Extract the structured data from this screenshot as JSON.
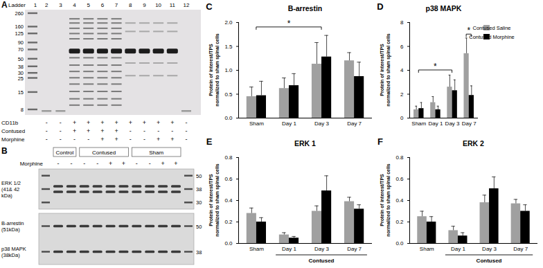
{
  "panel_a": {
    "letter": "A",
    "ladder_label": "Ladder",
    "lanes": [
      "1",
      "2",
      "3",
      "4",
      "5",
      "6",
      "7",
      "8",
      "9",
      "10",
      "11",
      "12"
    ],
    "markers": [
      260,
      160,
      125,
      90,
      70,
      50,
      38,
      30,
      25,
      15,
      8
    ],
    "conditions": [
      {
        "label": "CD11b",
        "signs": [
          "-",
          "-",
          "+",
          "+",
          "+",
          "+",
          "+",
          "+",
          "+",
          "+",
          "-"
        ]
      },
      {
        "label": "Contused",
        "signs": [
          "-",
          "-",
          "+",
          "+",
          "+",
          "+",
          "-",
          "-",
          "-",
          "-",
          "-"
        ]
      },
      {
        "label": "Morphine",
        "signs": [
          "-",
          "-",
          "-",
          "-",
          "+",
          "+",
          "-",
          "-",
          "+",
          "+",
          "-"
        ]
      }
    ]
  },
  "panel_b": {
    "letter": "B",
    "row_label": "Morphine",
    "groups": [
      {
        "label": "Control",
        "signs": [
          "-",
          "-"
        ]
      },
      {
        "label": "Contused",
        "signs": [
          "-",
          "-",
          "+",
          "+"
        ]
      },
      {
        "label": "Sham",
        "signs": [
          "-",
          "-",
          "+",
          "+"
        ]
      }
    ],
    "blots": [
      {
        "labels": [
          [
            "ERK 1/2",
            "(41& 42",
            "kDa)"
          ]
        ],
        "markers": [
          50,
          38,
          30
        ]
      },
      {
        "labels": [
          [
            "B-arrestin",
            "(51kDa)"
          ],
          [
            "p38 MAPK",
            "(38kDa)"
          ]
        ],
        "markers": [
          50,
          38
        ]
      }
    ]
  },
  "chart_data": [
    {
      "type": "bar",
      "letter": "C",
      "title": "B-arrestin",
      "ylabel": "Protein of interest/TPS normalized to sham spinal cells",
      "categories": [
        "Sham",
        "Day 1",
        "Day 3",
        "Day 7"
      ],
      "series": [
        {
          "name": "Contused Saline",
          "color": "#a0a0a0",
          "values": [
            0.45,
            0.62,
            1.13,
            1.2
          ],
          "errors": [
            0.2,
            0.22,
            0.45,
            0.17
          ]
        },
        {
          "name": "Contused Morphine",
          "color": "#000000",
          "values": [
            0.47,
            0.68,
            1.28,
            0.87
          ],
          "errors": [
            0.3,
            0.25,
            0.45,
            0.3
          ]
        }
      ],
      "ylim": [
        0,
        2
      ],
      "yticks": [
        {
          "value": 0,
          "label": "0.0"
        },
        {
          "value": 0.5,
          "label": "0.5"
        },
        {
          "value": 1,
          "label": "1.0"
        },
        {
          "value": 1.5,
          "label": "1.5"
        },
        {
          "value": 2,
          "label": "2.0"
        }
      ],
      "significance": [
        {
          "label": "*",
          "from": "Sham",
          "to": "Day 3",
          "y": 1.9
        }
      ]
    },
    {
      "type": "bar",
      "letter": "D",
      "title": "p38 MAPK",
      "ylabel": "Protein of interest/TPS normalized to sham spinal cells",
      "categories": [
        "Sham",
        "Day 1",
        "Day 3",
        "Day 7"
      ],
      "series": [
        {
          "name": "Contused Saline",
          "color": "#a0a0a0",
          "values": [
            0.7,
            1.3,
            2.6,
            5.4
          ],
          "errors": [
            0.3,
            0.5,
            1.0,
            1.3
          ]
        },
        {
          "name": "Contused Morphine",
          "color": "#000000",
          "values": [
            0.8,
            0.7,
            2.3,
            1.9
          ],
          "errors": [
            0.5,
            0.3,
            0.9,
            0.8
          ]
        }
      ],
      "ylim": [
        0,
        8
      ],
      "yticks": [
        0,
        2,
        4,
        6,
        8
      ],
      "legend": "right",
      "significance": [
        {
          "label": "*",
          "from": "Sham",
          "to": "Day 3",
          "y": 4.0
        },
        {
          "label": "*",
          "from": "Day 7",
          "to": "Day 7",
          "series": [
            "Contused Saline",
            "Contused Morphine"
          ],
          "y": 7.0
        }
      ]
    },
    {
      "type": "bar",
      "letter": "E",
      "title": "ERK 1",
      "ylabel": "Protein of interest/TPS normalized to sham spinal cells",
      "categories": [
        "Sham",
        "Day 1",
        "Day 3",
        "Day 7"
      ],
      "series": [
        {
          "name": "Contused Saline",
          "color": "#a0a0a0",
          "values": [
            0.28,
            0.08,
            0.3,
            0.39
          ],
          "errors": [
            0.05,
            0.02,
            0.05,
            0.04
          ]
        },
        {
          "name": "Contused Morphine",
          "color": "#000000",
          "values": [
            0.2,
            0.05,
            0.49,
            0.32
          ],
          "errors": [
            0.04,
            0.015,
            0.14,
            0.04
          ]
        }
      ],
      "ylim": [
        0,
        0.8
      ],
      "yticks": [
        {
          "value": 0,
          "label": "0.0"
        },
        {
          "value": 0.2,
          "label": "0.2"
        },
        {
          "value": 0.4,
          "label": "0.4"
        },
        {
          "value": 0.6,
          "label": "0.6"
        },
        {
          "value": 0.8,
          "label": "0.8"
        }
      ],
      "group_label": {
        "text": "Contused",
        "categories": [
          "Day 1",
          "Day 3",
          "Day 7"
        ]
      }
    },
    {
      "type": "bar",
      "letter": "F",
      "title": "ERK 2",
      "ylabel": "Protein of interest/TPS normalized to sham spinal cells",
      "categories": [
        "Sham",
        "Day 1",
        "Day 3",
        "Day 7"
      ],
      "series": [
        {
          "name": "Contused Saline",
          "color": "#a0a0a0",
          "values": [
            0.25,
            0.12,
            0.38,
            0.37
          ],
          "errors": [
            0.05,
            0.04,
            0.07,
            0.04
          ]
        },
        {
          "name": "Contused Morphine",
          "color": "#000000",
          "values": [
            0.2,
            0.07,
            0.51,
            0.3
          ],
          "errors": [
            0.05,
            0.03,
            0.11,
            0.06
          ]
        }
      ],
      "ylim": [
        0,
        0.8
      ],
      "yticks": [
        {
          "value": 0,
          "label": "0.0"
        },
        {
          "value": 0.2,
          "label": "0.2"
        },
        {
          "value": 0.4,
          "label": "0.4"
        },
        {
          "value": 0.6,
          "label": "0.6"
        },
        {
          "value": 0.8,
          "label": "0.8"
        }
      ],
      "group_label": {
        "text": "Contused",
        "categories": [
          "Day 1",
          "Day 3",
          "Day 7"
        ]
      }
    }
  ]
}
